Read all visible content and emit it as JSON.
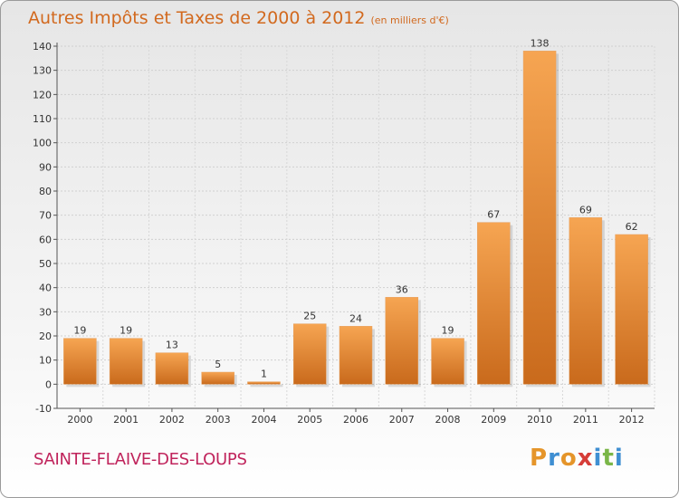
{
  "header": {
    "title": "Autres Impôts et Taxes de 2000 à 2012",
    "unit": "(en milliers d'€)"
  },
  "footer": {
    "commune": "SAINTE-FLAIVE-DES-LOUPS",
    "logo_letters": [
      "P",
      "r",
      "o",
      "x",
      "i",
      "t",
      "i"
    ],
    "logo_colors": [
      "#e5952a",
      "#3f8fd2",
      "#e5952a",
      "#d63d38",
      "#3f8fd2",
      "#7ab648",
      "#3f8fd2"
    ]
  },
  "colors": {
    "bar_light": "#f6a552",
    "bar_dark": "#c96a1c",
    "title": "#d2691e",
    "commune": "#c0245c"
  },
  "chart_data": {
    "type": "bar",
    "categories": [
      "2000",
      "2001",
      "2002",
      "2003",
      "2004",
      "2005",
      "2006",
      "2007",
      "2008",
      "2009",
      "2010",
      "2011",
      "2012"
    ],
    "values": [
      19,
      19,
      13,
      5,
      1,
      25,
      24,
      36,
      19,
      67,
      138,
      69,
      62
    ],
    "title": "Autres Impôts et Taxes de 2000 à 2012",
    "ylabel": "",
    "xlabel": "",
    "ylim": [
      -10,
      140
    ],
    "yticks": [
      -10,
      0,
      10,
      20,
      30,
      40,
      50,
      60,
      70,
      80,
      90,
      100,
      110,
      120,
      130,
      140
    ],
    "grid": true,
    "legend": "none"
  }
}
